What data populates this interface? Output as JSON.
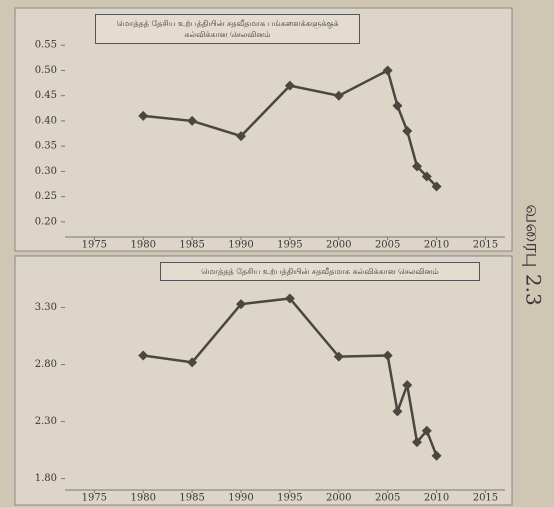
{
  "side_label": "வரைபு 2.3",
  "chart_data": [
    {
      "type": "line",
      "title": "மொத்தத் தேசிய உற்பத்தியின் சதவீதமாக பங்களைக்களுக்குக் கல்விக்கான செலவினம்",
      "x": [
        1980,
        1985,
        1990,
        1995,
        2000,
        2005,
        2006,
        2007,
        2008,
        2009,
        2010
      ],
      "values": [
        0.41,
        0.4,
        0.37,
        0.47,
        0.45,
        0.5,
        0.43,
        0.38,
        0.31,
        0.29,
        0.27
      ],
      "color": "#4a4640",
      "xlim": [
        1972,
        2017
      ],
      "xticks": [
        1975,
        1980,
        1985,
        1990,
        1995,
        2000,
        2005,
        2010,
        2015
      ],
      "ylim": [
        0.17,
        0.6
      ],
      "yticks": [
        {
          "value": 0.2,
          "label": "0.20"
        },
        0.25,
        {
          "value": 0.3,
          "label": "0.30"
        },
        0.35,
        {
          "value": 0.4,
          "label": "0.40"
        },
        0.45,
        {
          "value": 0.5,
          "label": "0.50"
        },
        0.55
      ]
    },
    {
      "type": "line",
      "title": "மொத்தத் தேசிய உற்பத்தியின் சதவீதமாக கல்விக்கான செலவினம்",
      "x": [
        1980,
        1985,
        1990,
        1995,
        2000,
        2005,
        2006,
        2007,
        2008,
        2009,
        2010
      ],
      "values": [
        2.88,
        2.82,
        3.33,
        3.38,
        2.87,
        2.88,
        2.39,
        2.62,
        2.12,
        2.22,
        2.0
      ],
      "color": "#4a4640",
      "xlim": [
        1972,
        2017
      ],
      "xticks": [
        1975,
        1980,
        1985,
        1990,
        1995,
        2000,
        2005,
        2010,
        2015
      ],
      "ylim": [
        1.7,
        3.7
      ],
      "yticks": [
        {
          "value": 1.8,
          "label": "1.80"
        },
        {
          "value": 2.3,
          "label": "2.30"
        },
        {
          "value": 2.8,
          "label": "2.80"
        },
        {
          "value": 3.3,
          "label": "3.30"
        }
      ]
    }
  ]
}
